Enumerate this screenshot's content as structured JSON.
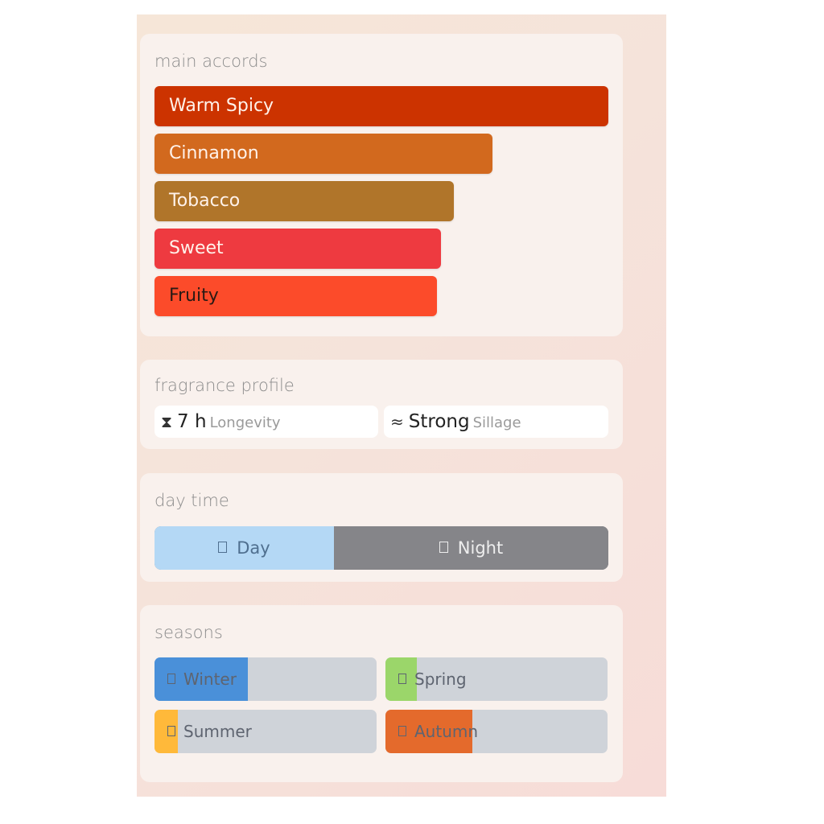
{
  "main_accords": {
    "title": "main accords",
    "items": [
      {
        "label": "Warm Spicy",
        "color": "#cc3300",
        "strength": 1.0,
        "text_color": "#fff2ea"
      },
      {
        "label": "Cinnamon",
        "color": "#d2691e",
        "strength": 0.745,
        "text_color": "#fff2ea"
      },
      {
        "label": "Tobacco",
        "color": "#b0752a",
        "strength": 0.66,
        "text_color": "#fff2ea"
      },
      {
        "label": "Sweet",
        "color": "#ee3a40",
        "strength": 0.632,
        "text_color": "#fff2ea"
      },
      {
        "label": "Fruity",
        "color": "#fc4b2a",
        "strength": 0.622,
        "text_color": "#2a1a14"
      }
    ]
  },
  "fragrance_profile": {
    "title": "fragrance profile",
    "longevity": {
      "icon": "hourglass-icon",
      "glyph": "⧗",
      "value": "7 h",
      "label": "Longevity"
    },
    "sillage": {
      "icon": "approx-waves-icon",
      "glyph": "≈",
      "value": "Strong",
      "label": "Sillage"
    }
  },
  "day_time": {
    "title": "day time",
    "day": {
      "label": "Day",
      "icon": "sun-icon",
      "fraction": 0.395,
      "color": "#b4d8f5",
      "text_color": "#4f6f8f"
    },
    "night": {
      "label": "Night",
      "icon": "moon-icon",
      "fraction": 0.605,
      "color": "#858589",
      "text_color": "#eeeeee"
    }
  },
  "seasons": {
    "title": "seasons",
    "items": [
      {
        "label": "Winter",
        "icon": "snowflake-icon",
        "fraction": 0.42,
        "color": "#4a90d9"
      },
      {
        "label": "Spring",
        "icon": "flower-icon",
        "fraction": 0.14,
        "color": "#9bd66a"
      },
      {
        "label": "Summer",
        "icon": "sun-icon",
        "fraction": 0.105,
        "color": "#ffb93a"
      },
      {
        "label": "Autumn",
        "icon": "leaf-icon",
        "fraction": 0.39,
        "color": "#e46a2c"
      }
    ]
  }
}
